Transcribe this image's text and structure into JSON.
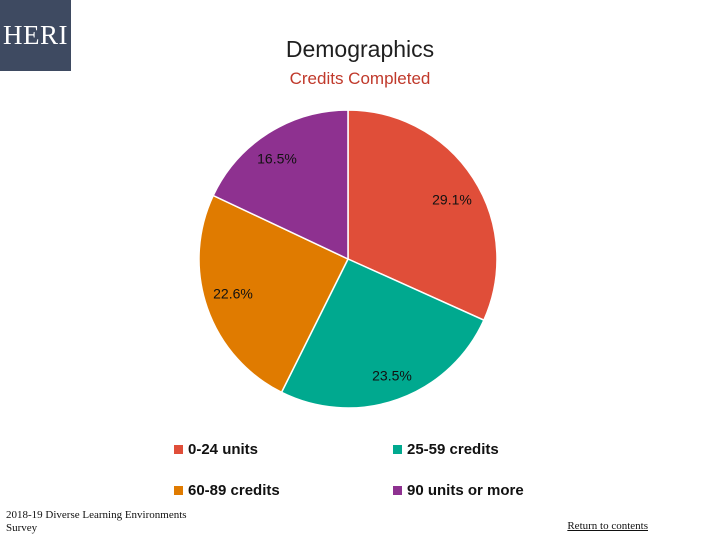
{
  "logo": {
    "text": "HERI"
  },
  "footer": {
    "source": "2018-19 Diverse Learning Environments Survey",
    "link": "Return to contents"
  },
  "chart_data": {
    "type": "pie",
    "title": "Demographics",
    "subtitle": "Credits Completed",
    "slices": [
      {
        "name": "0-24 units",
        "value": 29.1,
        "label": "29.1%",
        "color": "#e04e39"
      },
      {
        "name": "25-59 credits",
        "value": 23.5,
        "label": "23.5%",
        "color": "#00a98f"
      },
      {
        "name": "60-89 credits",
        "value": 22.6,
        "label": "22.6%",
        "color": "#e07b00"
      },
      {
        "name": "90 units or more",
        "value": 16.5,
        "label": "16.5%",
        "color": "#8e3190"
      }
    ],
    "legend": {
      "placement": "bottom",
      "entries": [
        "0-24 units",
        "25-59 credits",
        "60-89 credits",
        "90 units or more"
      ]
    }
  }
}
